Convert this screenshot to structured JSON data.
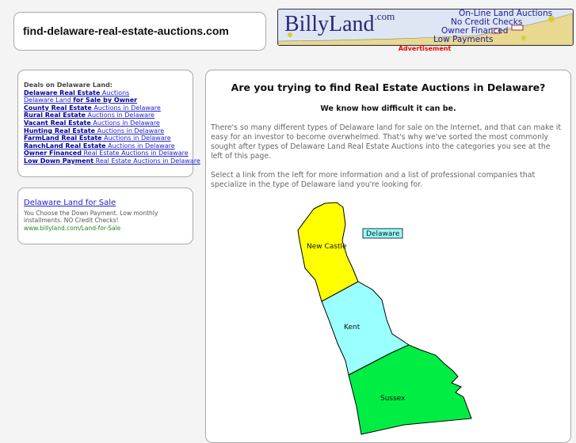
{
  "site": {
    "domain": "find-delaware-real-estate-auctions.com"
  },
  "banner": {
    "logo": "BillyLand",
    "logo_suffix": ".com",
    "lines": [
      "On-Line Land Auctions",
      "No Credit Checks",
      "Owner Financed",
      "Low Payments"
    ],
    "label": "Advertisement"
  },
  "deals": {
    "heading": "Deals on Delaware Land:",
    "links": [
      {
        "bold": "Delaware Real Estate",
        "rest": " Auctions",
        "bold_first": true
      },
      {
        "bold": "for Sale by Owner",
        "rest": "Delaware Land ",
        "bold_first": false
      },
      {
        "bold": "County Real Estate",
        "rest": " Auctions in Delaware",
        "bold_first": true
      },
      {
        "bold": "Rural Real Estate",
        "rest": " Auctions in Delaware",
        "bold_first": true
      },
      {
        "bold": "Vacant Real Estate",
        "rest": " Auctions in Delaware",
        "bold_first": true
      },
      {
        "bold": "Hunting Real Estate",
        "rest": " Auctions in Delaware",
        "bold_first": true
      },
      {
        "bold": "FarmLand Real Estate",
        "rest": " Auctions in Delaware",
        "bold_first": true
      },
      {
        "bold": "RanchLand Real Estate",
        "rest": " Auctions in Delaware",
        "bold_first": true
      },
      {
        "bold": "Owner Financed",
        "rest": " Real Estate Auctions in Delaware",
        "bold_first": true
      },
      {
        "bold": "Low Down Payment",
        "rest": " Real Estate Auctions in Delaware",
        "bold_first": true
      }
    ]
  },
  "ad": {
    "title": "Delaware Land for Sale",
    "text": "You Choose the Down Payment. Low monthly installments. NO Credit Checks!",
    "url": "www.billyland.com/Land-for-Sale"
  },
  "main": {
    "question": "Are you trying to find Real Estate Auctions in Delaware?",
    "sub": "We know how difficult it can be.",
    "p1": "There's so many different types of Delaware land for sale on the Internet, and that can make it easy for an investor to become overwhelmed. That's why we've sorted the most commonly sought after types of Delaware Land Real Estate Auctions into the categories you see at the left of this page.",
    "p2": "Select a link from the left for more information and a list of professional companies that specialize in the type of Delaware land you're looking for."
  },
  "map": {
    "state_label": "Delaware",
    "counties": [
      {
        "name": "New Castle",
        "color": "#ffff00"
      },
      {
        "name": "Kent",
        "color": "#99ffff"
      },
      {
        "name": "Sussex",
        "color": "#00ee44"
      }
    ]
  }
}
